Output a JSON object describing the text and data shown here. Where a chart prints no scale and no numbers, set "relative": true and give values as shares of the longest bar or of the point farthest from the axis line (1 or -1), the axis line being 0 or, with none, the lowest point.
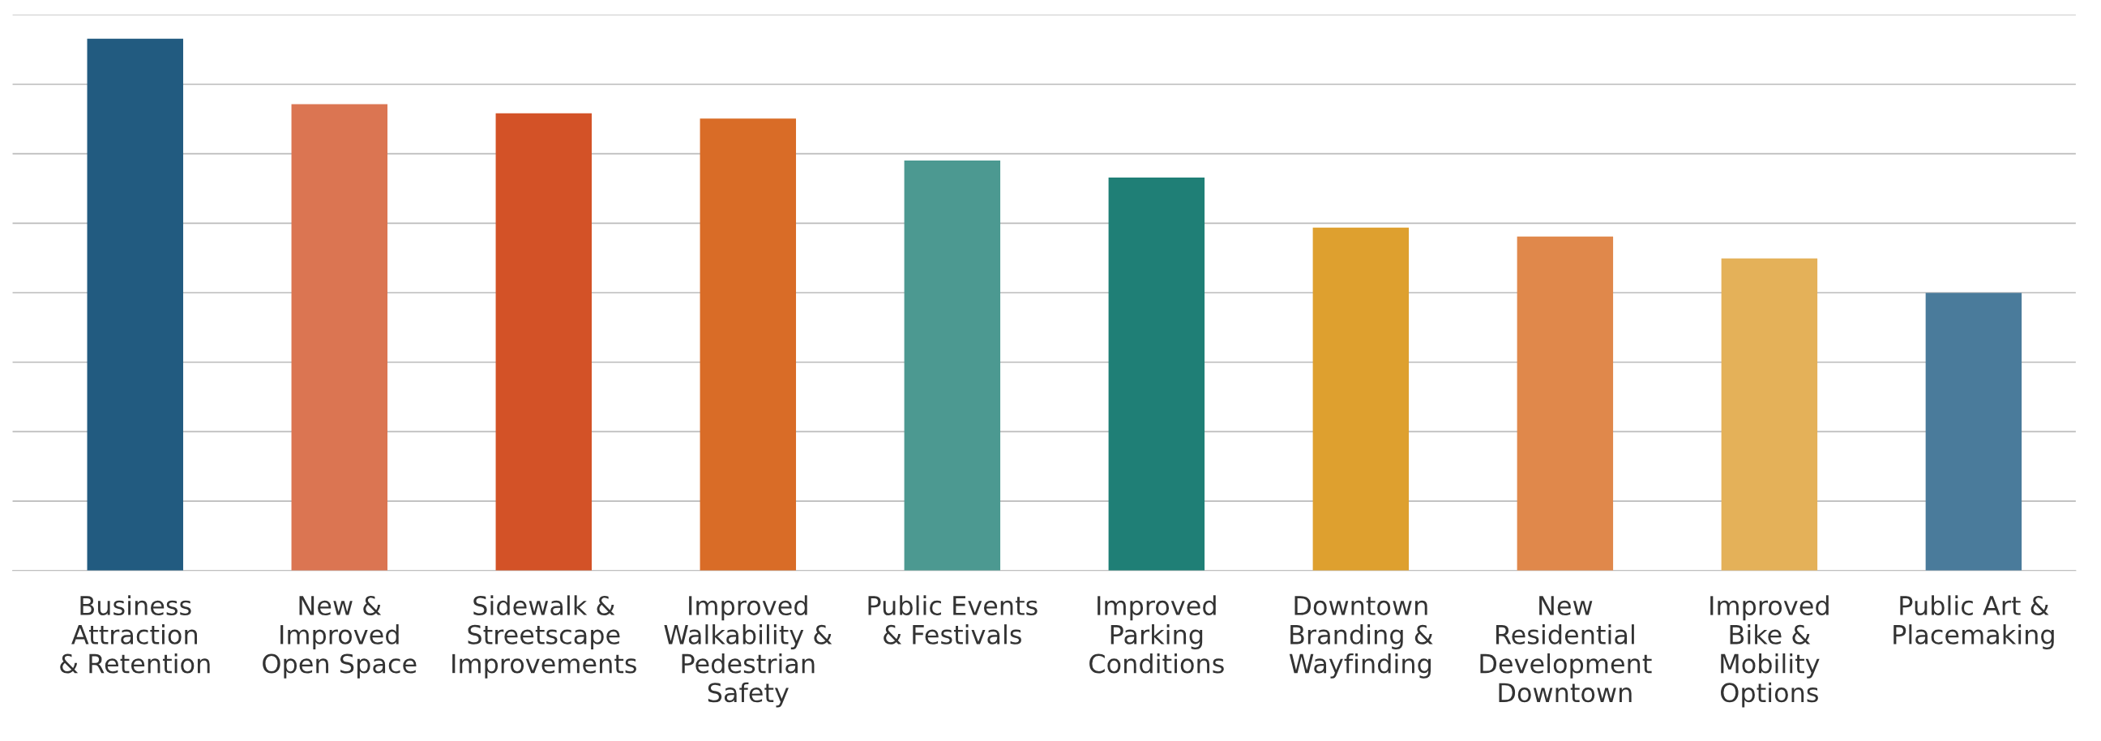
{
  "chart_data": {
    "type": "bar",
    "relative": true,
    "grid": "y",
    "legend": false,
    "categories": [
      "Business\nAttraction\n& Retention",
      "New &\nImproved\nOpen Space",
      "Sidewalk &\nStreetscape\nImprovements",
      "Improved\nWalkability &\nPedestrian\nSafety",
      "Public Events\n& Festivals",
      "Improved\nParking\nConditions",
      "Downtown\nBranding &\nWayfinding",
      "New\nResidential\nDevelopment\nDowntown",
      "Improved\nBike &\nMobility\nOptions",
      "Public Art &\nPlacemaking"
    ],
    "values": [
      1,
      0.877,
      0.86,
      0.85,
      0.771,
      0.739,
      0.645,
      0.628,
      0.587,
      0.522
    ],
    "colors": [
      "#225b80",
      "#db7552",
      "#d35227",
      "#d96c27",
      "#4c9991",
      "#1f7f76",
      "#dea02f",
      "#e0884b",
      "#e4b159",
      "#4a7b9b"
    ]
  }
}
